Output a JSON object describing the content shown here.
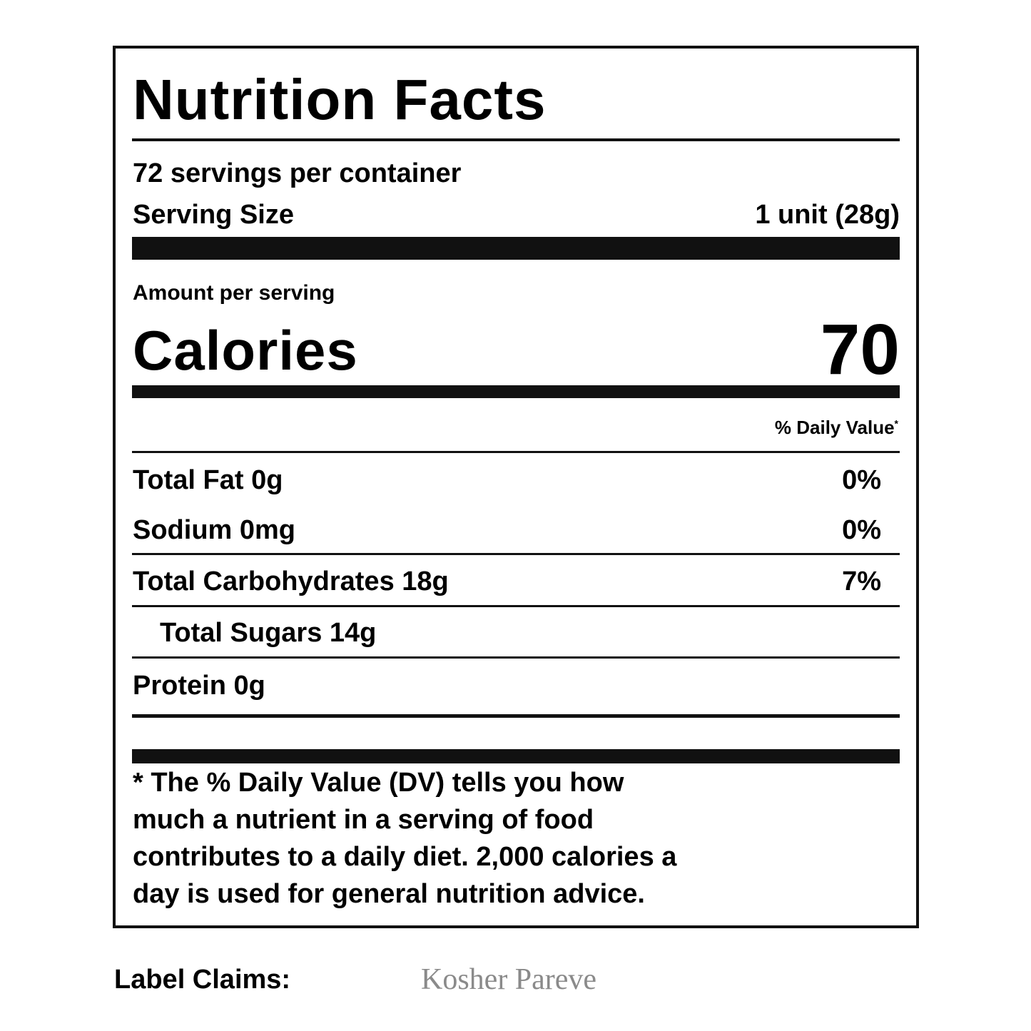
{
  "title": "Nutrition Facts",
  "servings_per_container": "72 servings per container",
  "serving_size_label": "Serving Size",
  "serving_size_value": "1 unit (28g)",
  "amount_per_serving": "Amount per serving",
  "calories_label": "Calories",
  "calories_value": "70",
  "daily_value_header": "% Daily Value",
  "daily_value_asterisk": "*",
  "nutrients": [
    {
      "label": "Total Fat 0g",
      "dv": "0%"
    },
    {
      "label": "Sodium 0mg",
      "dv": "0%"
    },
    {
      "label": "Total Carbohydrates 18g",
      "dv": "7%"
    },
    {
      "label": "Total Sugars 14g",
      "dv": ""
    },
    {
      "label": "Protein 0g",
      "dv": ""
    }
  ],
  "footnote": [
    "* The % Daily Value (DV) tells you how",
    "much a nutrient in a serving of food",
    "contributes to a daily diet. 2,000 calories a",
    "day is used for general nutrition advice."
  ],
  "label_claims": {
    "label": "Label Claims:",
    "value": "Kosher Pareve"
  }
}
